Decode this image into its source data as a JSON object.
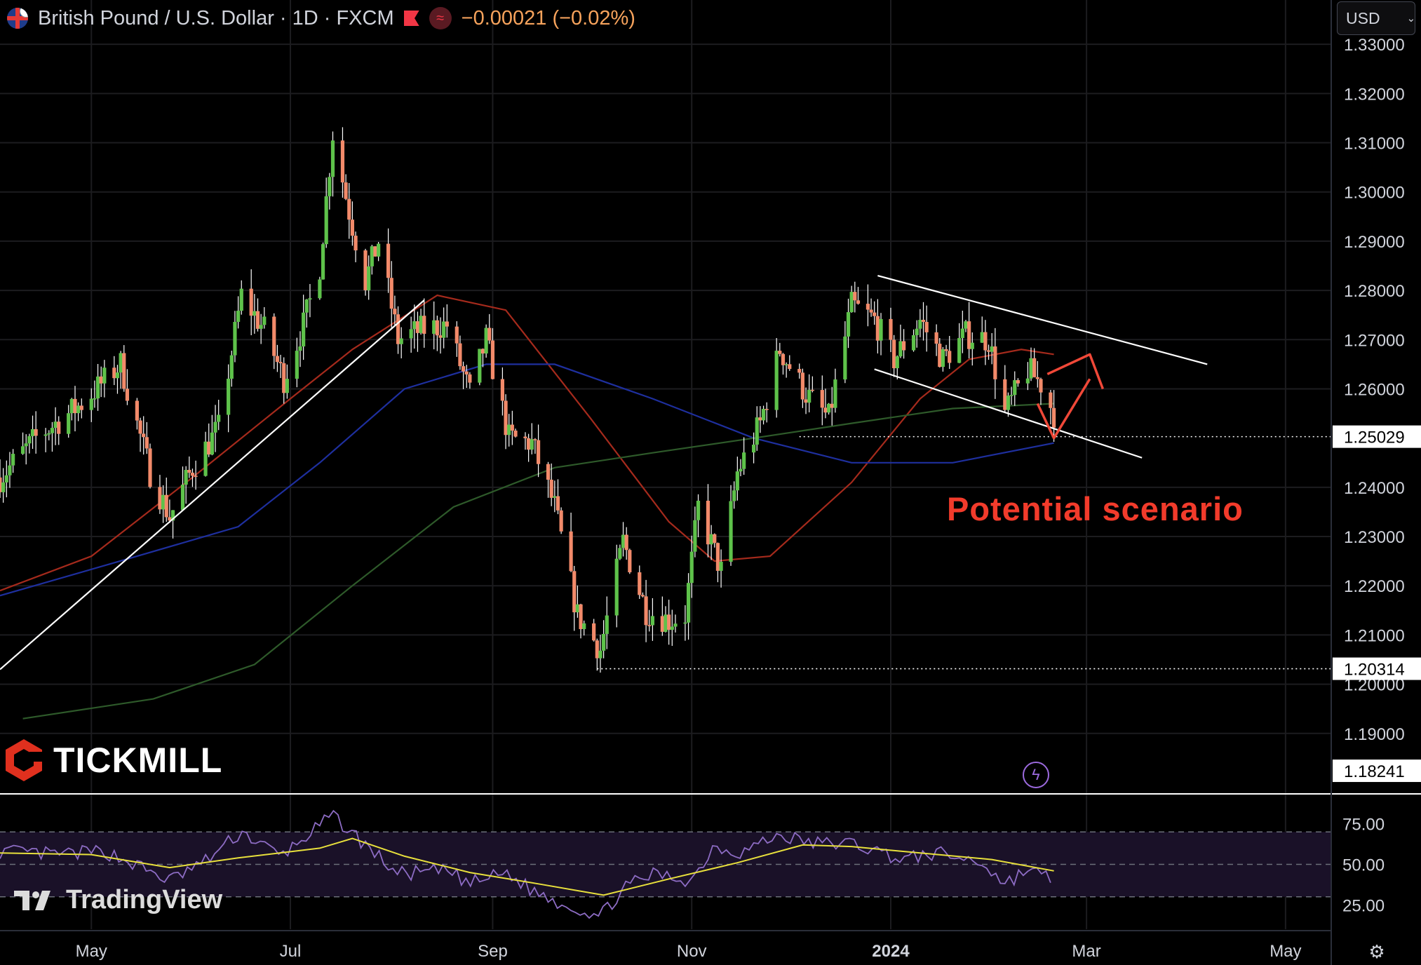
{
  "header": {
    "symbol": "British Pound / U.S. Dollar · 1D · FXCM",
    "change": "−0.00021 (−0.02%)",
    "currency": "USD"
  },
  "brand": {
    "tickmill": "TICKMILL",
    "tradingview": "TradingView"
  },
  "annotation": {
    "scenario_text": "Potential scenario"
  },
  "colors": {
    "up": "#5ec24a",
    "down": "#f28a6a",
    "ma_red": "#a52a1c",
    "ma_blue": "#1e2f9e",
    "ma_green": "#2e5a2a",
    "rsi": "#8d6cc4",
    "rsi_ma": "#e8e03c",
    "arrow": "#f04838"
  },
  "icons": [
    "flag-icon",
    "red-flag-icon",
    "wave-icon",
    "chevron-down-icon",
    "bolt-icon",
    "settings-icon"
  ],
  "chart_data": {
    "type": "candlestick",
    "price_axis": {
      "range": [
        1.178,
        1.339
      ],
      "ticks": [
        "1.33000",
        "1.32000",
        "1.31000",
        "1.30000",
        "1.29000",
        "1.28000",
        "1.27000",
        "1.26000",
        "1.24000",
        "1.23000",
        "1.22000",
        "1.21000",
        "1.20000",
        "1.19000"
      ],
      "tick_values": [
        1.33,
        1.32,
        1.31,
        1.3,
        1.29,
        1.28,
        1.27,
        1.26,
        1.24,
        1.23,
        1.22,
        1.21,
        1.2,
        1.19
      ],
      "labels": [
        {
          "text": "1.25029",
          "value": 1.25029,
          "style": "white"
        },
        {
          "text": "1.20314",
          "value": 1.20314,
          "style": "white"
        },
        {
          "text": "1.18241",
          "value": 1.18241,
          "style": "white"
        }
      ]
    },
    "time_axis": {
      "labels": [
        "May",
        "Jul",
        "Sep",
        "Nov",
        "2024",
        "Mar",
        "May"
      ],
      "label_dates": [
        "2023-05-01",
        "2023-07-01",
        "2023-09-01",
        "2023-11-01",
        "2024-01-01",
        "2024-03-01",
        "2024-05-01"
      ],
      "start": "2023-04-03",
      "end": "2024-05-15"
    },
    "rsi_axis": {
      "range": [
        10,
        90
      ],
      "ticks": [
        "75.00",
        "50.00",
        "25.00"
      ],
      "tick_values": [
        75,
        50,
        25
      ],
      "band": [
        30,
        70
      ]
    },
    "price_path": [
      [
        "2023-04-03",
        1.242
      ],
      [
        "2023-04-14",
        1.25
      ],
      [
        "2023-04-28",
        1.257
      ],
      [
        "2023-05-10",
        1.265
      ],
      [
        "2023-05-19",
        1.243
      ],
      [
        "2023-05-25",
        1.234
      ],
      [
        "2023-06-01",
        1.244
      ],
      [
        "2023-06-09",
        1.252
      ],
      [
        "2023-06-16",
        1.279
      ],
      [
        "2023-06-23",
        1.272
      ],
      [
        "2023-06-29",
        1.262
      ],
      [
        "2023-07-05",
        1.273
      ],
      [
        "2023-07-10",
        1.285
      ],
      [
        "2023-07-14",
        1.312
      ],
      [
        "2023-07-19",
        1.296
      ],
      [
        "2023-07-24",
        1.282
      ],
      [
        "2023-07-28",
        1.29
      ],
      [
        "2023-08-03",
        1.27
      ],
      [
        "2023-08-10",
        1.272
      ],
      [
        "2023-08-18",
        1.273
      ],
      [
        "2023-08-25",
        1.259
      ],
      [
        "2023-08-30",
        1.27
      ],
      [
        "2023-09-06",
        1.25
      ],
      [
        "2023-09-13",
        1.249
      ],
      [
        "2023-09-20",
        1.236
      ],
      [
        "2023-09-27",
        1.214
      ],
      [
        "2023-10-04",
        1.207
      ],
      [
        "2023-10-11",
        1.229
      ],
      [
        "2023-10-18",
        1.215
      ],
      [
        "2023-10-25",
        1.213
      ],
      [
        "2023-10-30",
        1.214
      ],
      [
        "2023-11-03",
        1.236
      ],
      [
        "2023-11-10",
        1.223
      ],
      [
        "2023-11-15",
        1.243
      ],
      [
        "2023-11-22",
        1.253
      ],
      [
        "2023-11-28",
        1.268
      ],
      [
        "2023-12-06",
        1.259
      ],
      [
        "2023-12-13",
        1.254
      ],
      [
        "2023-12-20",
        1.277
      ],
      [
        "2023-12-27",
        1.274
      ],
      [
        "2024-01-02",
        1.266
      ],
      [
        "2024-01-10",
        1.274
      ],
      [
        "2024-01-17",
        1.266
      ],
      [
        "2024-01-24",
        1.271
      ],
      [
        "2024-01-31",
        1.27
      ],
      [
        "2024-02-05",
        1.255
      ],
      [
        "2024-02-12",
        1.264
      ],
      [
        "2024-02-16",
        1.261
      ],
      [
        "2024-02-20",
        1.255
      ]
    ],
    "moving_averages": [
      {
        "color": "red",
        "points": [
          [
            "2023-04-03",
            1.219
          ],
          [
            "2023-05-01",
            1.226
          ],
          [
            "2023-06-01",
            1.242
          ],
          [
            "2023-07-01",
            1.258
          ],
          [
            "2023-07-20",
            1.268
          ],
          [
            "2023-08-15",
            1.279
          ],
          [
            "2023-09-05",
            1.276
          ],
          [
            "2023-10-01",
            1.254
          ],
          [
            "2023-10-25",
            1.233
          ],
          [
            "2023-11-08",
            1.225
          ],
          [
            "2023-11-25",
            1.226
          ],
          [
            "2023-12-20",
            1.241
          ],
          [
            "2024-01-10",
            1.258
          ],
          [
            "2024-01-25",
            1.266
          ],
          [
            "2024-02-10",
            1.268
          ],
          [
            "2024-02-20",
            1.267
          ]
        ]
      },
      {
        "color": "blue",
        "points": [
          [
            "2023-04-03",
            1.218
          ],
          [
            "2023-05-15",
            1.226
          ],
          [
            "2023-06-15",
            1.232
          ],
          [
            "2023-07-10",
            1.245
          ],
          [
            "2023-08-05",
            1.26
          ],
          [
            "2023-08-30",
            1.265
          ],
          [
            "2023-09-20",
            1.265
          ],
          [
            "2023-10-20",
            1.258
          ],
          [
            "2023-11-20",
            1.25
          ],
          [
            "2023-12-20",
            1.245
          ],
          [
            "2024-01-20",
            1.245
          ],
          [
            "2024-02-20",
            1.249
          ]
        ]
      },
      {
        "color": "green",
        "points": [
          [
            "2023-04-10",
            1.193
          ],
          [
            "2023-05-20",
            1.197
          ],
          [
            "2023-06-20",
            1.204
          ],
          [
            "2023-07-20",
            1.22
          ],
          [
            "2023-08-20",
            1.236
          ],
          [
            "2023-09-20",
            1.244
          ],
          [
            "2023-10-20",
            1.247
          ],
          [
            "2023-11-20",
            1.25
          ],
          [
            "2023-12-20",
            1.253
          ],
          [
            "2024-01-20",
            1.256
          ],
          [
            "2024-02-20",
            1.257
          ]
        ]
      }
    ],
    "trendlines": [
      {
        "from": [
          "2023-04-03",
          1.203
        ],
        "to": [
          "2023-08-11",
          1.278
        ],
        "color": "white"
      },
      {
        "from": [
          "2023-12-28",
          1.283
        ],
        "to": [
          "2024-04-07",
          1.265
        ],
        "color": "white"
      },
      {
        "from": [
          "2023-12-27",
          1.264
        ],
        "to": [
          "2024-03-18",
          1.246
        ],
        "color": "white"
      }
    ],
    "levels": [
      {
        "value": 1.25029,
        "from": "2023-12-04",
        "style": "dotted"
      },
      {
        "value": 1.20314,
        "from": "2023-10-03",
        "style": "dotted"
      }
    ],
    "scenario_arrow": [
      [
        "2024-02-15",
        1.257
      ],
      [
        "2024-02-20",
        1.25
      ],
      [
        "2024-03-02",
        1.262
      ]
    ],
    "scenario_arrow_head": [
      [
        "2024-02-18",
        1.263
      ],
      [
        "2024-03-02",
        1.267
      ],
      [
        "2024-03-06",
        1.26
      ]
    ],
    "rsi_path": [
      [
        "2023-04-03",
        58
      ],
      [
        "2023-04-20",
        56
      ],
      [
        "2023-05-05",
        58
      ],
      [
        "2023-05-12",
        52
      ],
      [
        "2023-05-25",
        40
      ],
      [
        "2023-06-05",
        52
      ],
      [
        "2023-06-16",
        70
      ],
      [
        "2023-06-28",
        55
      ],
      [
        "2023-07-14",
        80
      ],
      [
        "2023-07-24",
        62
      ],
      [
        "2023-08-03",
        44
      ],
      [
        "2023-08-18",
        46
      ],
      [
        "2023-08-25",
        38
      ],
      [
        "2023-09-05",
        45
      ],
      [
        "2023-09-13",
        34
      ],
      [
        "2023-09-22",
        26
      ],
      [
        "2023-10-04",
        18
      ],
      [
        "2023-10-11",
        35
      ],
      [
        "2023-10-20",
        44
      ],
      [
        "2023-11-01",
        40
      ],
      [
        "2023-11-08",
        62
      ],
      [
        "2023-11-15",
        57
      ],
      [
        "2023-11-28",
        68
      ],
      [
        "2023-12-08",
        63
      ],
      [
        "2023-12-20",
        63
      ],
      [
        "2024-01-05",
        53
      ],
      [
        "2024-01-15",
        57
      ],
      [
        "2024-01-29",
        51
      ],
      [
        "2024-02-05",
        38
      ],
      [
        "2024-02-12",
        47
      ],
      [
        "2024-02-20",
        40
      ]
    ],
    "rsi_ma_path": [
      [
        "2023-04-03",
        57
      ],
      [
        "2023-05-01",
        56
      ],
      [
        "2023-05-25",
        48
      ],
      [
        "2023-06-15",
        54
      ],
      [
        "2023-07-10",
        60
      ],
      [
        "2023-07-20",
        66
      ],
      [
        "2023-08-05",
        55
      ],
      [
        "2023-08-25",
        45
      ],
      [
        "2023-09-15",
        38
      ],
      [
        "2023-10-05",
        31
      ],
      [
        "2023-10-25",
        41
      ],
      [
        "2023-11-15",
        51
      ],
      [
        "2023-12-05",
        62
      ],
      [
        "2023-12-20",
        61
      ],
      [
        "2024-01-10",
        57
      ],
      [
        "2024-02-01",
        53
      ],
      [
        "2024-02-20",
        46
      ]
    ]
  }
}
